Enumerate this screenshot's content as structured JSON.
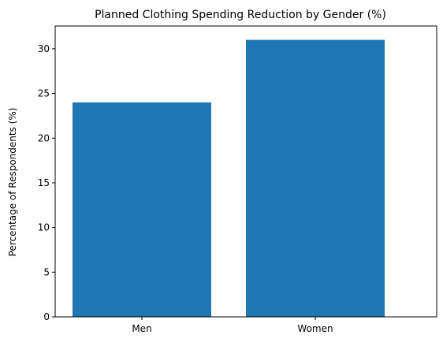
{
  "chart_data": {
    "type": "bar",
    "title": "Planned Clothing Spending Reduction by Gender (%)",
    "xlabel": "",
    "ylabel": "Percentage of Respondents (%)",
    "categories": [
      "Men",
      "Women"
    ],
    "values": [
      24,
      31
    ],
    "ylim": [
      0,
      32.55
    ],
    "yticks": [
      0,
      5,
      10,
      15,
      20,
      25,
      30
    ],
    "grid": false,
    "colors": {
      "bar": "#1f77b4",
      "axis": "#000000",
      "background": "#ffffff"
    }
  }
}
